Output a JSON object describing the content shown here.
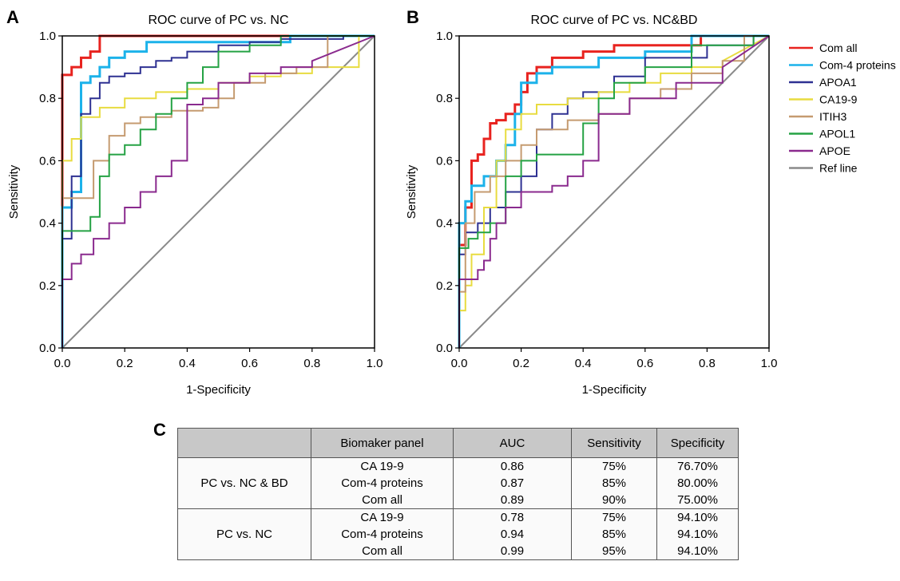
{
  "panel_labels": {
    "a": "A",
    "b": "B",
    "c": "C"
  },
  "ticks": {
    "x": [
      "0.0",
      "0.2",
      "0.4",
      "0.6",
      "0.8",
      "1.0"
    ],
    "y": [
      "0.0",
      "0.2",
      "0.4",
      "0.6",
      "0.8",
      "1.0"
    ]
  },
  "legend": {
    "items": [
      {
        "label": "Com all",
        "color": "#e8231f"
      },
      {
        "label": "Com-4 proteins",
        "color": "#1cb2ea"
      },
      {
        "label": "APOA1",
        "color": "#2e3192"
      },
      {
        "label": "CA19-9",
        "color": "#e8dc40"
      },
      {
        "label": "ITIH3",
        "color": "#c59b70"
      },
      {
        "label": "APOL1",
        "color": "#25a244"
      },
      {
        "label": "APOE",
        "color": "#8a2a8e"
      },
      {
        "label": "Ref line",
        "color": "#8a8a8a"
      }
    ]
  },
  "chart_data": [
    {
      "type": "line",
      "title": "ROC curve of PC vs. NC",
      "xlabel": "1-Specificity",
      "ylabel": "Sensitivity",
      "xlim": [
        0,
        1
      ],
      "ylim": [
        0,
        1
      ],
      "grid": false,
      "series": [
        {
          "name": "Com all",
          "color": "#e8231f",
          "x": [
            0,
            0,
            0.03,
            0.03,
            0.06,
            0.06,
            0.09,
            0.09,
            0.12,
            0.12,
            1
          ],
          "y": [
            0,
            0.875,
            0.875,
            0.9,
            0.9,
            0.93,
            0.93,
            0.95,
            0.95,
            1,
            1
          ]
        },
        {
          "name": "Com-4 proteins",
          "color": "#1cb2ea",
          "x": [
            0,
            0,
            0.03,
            0.03,
            0.06,
            0.06,
            0.09,
            0.09,
            0.12,
            0.12,
            0.15,
            0.15,
            0.2,
            0.2,
            0.27,
            0.27,
            0.73,
            0.73,
            1
          ],
          "y": [
            0,
            0.45,
            0.45,
            0.5,
            0.5,
            0.85,
            0.85,
            0.87,
            0.87,
            0.9,
            0.9,
            0.93,
            0.93,
            0.95,
            0.95,
            0.98,
            0.98,
            1,
            1
          ]
        },
        {
          "name": "APOA1",
          "color": "#2e3192",
          "x": [
            0,
            0,
            0.03,
            0.03,
            0.06,
            0.06,
            0.09,
            0.09,
            0.12,
            0.12,
            0.15,
            0.15,
            0.2,
            0.2,
            0.25,
            0.25,
            0.3,
            0.3,
            0.35,
            0.35,
            0.4,
            0.4,
            0.5,
            0.5,
            0.6,
            0.6,
            0.7,
            0.7,
            0.9,
            0.9,
            1
          ],
          "y": [
            0,
            0.35,
            0.35,
            0.55,
            0.55,
            0.75,
            0.75,
            0.8,
            0.8,
            0.85,
            0.85,
            0.87,
            0.87,
            0.88,
            0.88,
            0.9,
            0.9,
            0.92,
            0.92,
            0.93,
            0.93,
            0.95,
            0.95,
            0.97,
            0.97,
            0.98,
            0.98,
            0.99,
            0.99,
            1,
            1
          ]
        },
        {
          "name": "CA19-9",
          "color": "#e8dc40",
          "x": [
            0,
            0,
            0.03,
            0.03,
            0.06,
            0.06,
            0.12,
            0.12,
            0.2,
            0.2,
            0.3,
            0.3,
            0.4,
            0.4,
            0.5,
            0.5,
            0.6,
            0.6,
            0.7,
            0.7,
            0.8,
            0.8,
            0.95,
            0.95,
            1
          ],
          "y": [
            0,
            0.6,
            0.6,
            0.67,
            0.67,
            0.74,
            0.74,
            0.77,
            0.77,
            0.8,
            0.8,
            0.82,
            0.82,
            0.83,
            0.83,
            0.85,
            0.85,
            0.87,
            0.87,
            0.88,
            0.88,
            0.9,
            0.9,
            1,
            1
          ]
        },
        {
          "name": "ITIH3",
          "color": "#c59b70",
          "x": [
            0,
            0,
            0.05,
            0.05,
            0.1,
            0.1,
            0.15,
            0.15,
            0.2,
            0.2,
            0.25,
            0.25,
            0.35,
            0.35,
            0.45,
            0.45,
            0.5,
            0.5,
            0.55,
            0.55,
            0.65,
            0.65,
            0.75,
            0.75,
            0.85,
            0.85,
            1
          ],
          "y": [
            0,
            0.48,
            0.48,
            0.48,
            0.48,
            0.6,
            0.6,
            0.68,
            0.68,
            0.72,
            0.72,
            0.74,
            0.74,
            0.76,
            0.76,
            0.77,
            0.77,
            0.8,
            0.8,
            0.85,
            0.85,
            0.88,
            0.88,
            0.9,
            0.9,
            1,
            1
          ]
        },
        {
          "name": "APOL1",
          "color": "#25a244",
          "x": [
            0,
            0,
            0.09,
            0.09,
            0.12,
            0.12,
            0.15,
            0.15,
            0.2,
            0.2,
            0.25,
            0.25,
            0.3,
            0.3,
            0.35,
            0.35,
            0.4,
            0.4,
            0.45,
            0.45,
            0.5,
            0.5,
            0.6,
            0.6,
            0.7,
            0.7,
            1
          ],
          "y": [
            0,
            0.375,
            0.375,
            0.42,
            0.42,
            0.55,
            0.55,
            0.62,
            0.62,
            0.65,
            0.65,
            0.7,
            0.7,
            0.75,
            0.75,
            0.8,
            0.8,
            0.85,
            0.85,
            0.9,
            0.9,
            0.95,
            0.95,
            0.97,
            0.97,
            1,
            1
          ]
        },
        {
          "name": "APOE",
          "color": "#8a2a8e",
          "x": [
            0,
            0,
            0.03,
            0.03,
            0.06,
            0.06,
            0.1,
            0.1,
            0.15,
            0.15,
            0.2,
            0.2,
            0.25,
            0.25,
            0.3,
            0.3,
            0.35,
            0.35,
            0.4,
            0.4,
            0.45,
            0.45,
            0.5,
            0.5,
            0.6,
            0.6,
            0.7,
            0.7,
            0.8,
            0.8,
            1
          ],
          "y": [
            0,
            0.22,
            0.22,
            0.27,
            0.27,
            0.3,
            0.3,
            0.35,
            0.35,
            0.4,
            0.4,
            0.45,
            0.45,
            0.5,
            0.5,
            0.55,
            0.55,
            0.6,
            0.6,
            0.78,
            0.78,
            0.8,
            0.8,
            0.85,
            0.85,
            0.88,
            0.88,
            0.9,
            0.9,
            0.92,
            1
          ]
        },
        {
          "name": "Ref line",
          "color": "#8a8a8a",
          "x": [
            0,
            1
          ],
          "y": [
            0,
            1
          ]
        }
      ]
    },
    {
      "type": "line",
      "title": "ROC curve of PC vs. NC&BD",
      "xlabel": "1-Specificity",
      "ylabel": "Sensitivity",
      "xlim": [
        0,
        1
      ],
      "ylim": [
        0,
        1
      ],
      "grid": false,
      "series": [
        {
          "name": "Com all",
          "color": "#e8231f",
          "x": [
            0,
            0,
            0.02,
            0.02,
            0.04,
            0.04,
            0.06,
            0.06,
            0.08,
            0.08,
            0.1,
            0.1,
            0.12,
            0.12,
            0.15,
            0.15,
            0.18,
            0.18,
            0.2,
            0.2,
            0.22,
            0.22,
            0.25,
            0.25,
            0.3,
            0.3,
            0.4,
            0.4,
            0.5,
            0.5,
            0.78,
            0.78,
            1
          ],
          "y": [
            0,
            0.33,
            0.33,
            0.45,
            0.45,
            0.6,
            0.6,
            0.62,
            0.62,
            0.67,
            0.67,
            0.72,
            0.72,
            0.73,
            0.73,
            0.75,
            0.75,
            0.78,
            0.78,
            0.82,
            0.82,
            0.88,
            0.88,
            0.9,
            0.9,
            0.93,
            0.93,
            0.95,
            0.95,
            0.97,
            0.97,
            1,
            1
          ]
        },
        {
          "name": "Com-4 proteins",
          "color": "#1cb2ea",
          "x": [
            0,
            0,
            0.02,
            0.02,
            0.04,
            0.04,
            0.08,
            0.08,
            0.12,
            0.12,
            0.15,
            0.15,
            0.18,
            0.18,
            0.2,
            0.2,
            0.25,
            0.25,
            0.3,
            0.3,
            0.45,
            0.45,
            0.6,
            0.6,
            0.75,
            0.75,
            1
          ],
          "y": [
            0,
            0.4,
            0.4,
            0.47,
            0.47,
            0.52,
            0.52,
            0.55,
            0.55,
            0.6,
            0.6,
            0.65,
            0.65,
            0.75,
            0.75,
            0.85,
            0.85,
            0.88,
            0.88,
            0.9,
            0.9,
            0.93,
            0.93,
            0.95,
            0.95,
            1,
            1
          ]
        },
        {
          "name": "APOA1",
          "color": "#2e3192",
          "x": [
            0,
            0,
            0.02,
            0.02,
            0.06,
            0.06,
            0.1,
            0.1,
            0.15,
            0.15,
            0.2,
            0.2,
            0.25,
            0.25,
            0.3,
            0.3,
            0.35,
            0.35,
            0.4,
            0.4,
            0.5,
            0.5,
            0.6,
            0.6,
            0.8,
            0.8,
            0.95,
            0.95,
            1
          ],
          "y": [
            0,
            0.3,
            0.3,
            0.37,
            0.37,
            0.4,
            0.4,
            0.45,
            0.45,
            0.5,
            0.5,
            0.55,
            0.55,
            0.7,
            0.7,
            0.75,
            0.75,
            0.8,
            0.8,
            0.82,
            0.82,
            0.87,
            0.87,
            0.93,
            0.93,
            0.97,
            0.97,
            1,
            1
          ]
        },
        {
          "name": "CA19-9",
          "color": "#e8dc40",
          "x": [
            0,
            0,
            0.02,
            0.02,
            0.04,
            0.04,
            0.08,
            0.08,
            0.12,
            0.12,
            0.15,
            0.15,
            0.2,
            0.2,
            0.25,
            0.25,
            0.35,
            0.35,
            0.45,
            0.45,
            0.55,
            0.55,
            0.65,
            0.65,
            0.75,
            0.75,
            0.85,
            0.85,
            1
          ],
          "y": [
            0,
            0.12,
            0.12,
            0.2,
            0.2,
            0.3,
            0.3,
            0.45,
            0.45,
            0.6,
            0.6,
            0.7,
            0.7,
            0.75,
            0.75,
            0.78,
            0.78,
            0.8,
            0.8,
            0.82,
            0.82,
            0.85,
            0.85,
            0.88,
            0.88,
            0.9,
            0.9,
            0.92,
            1
          ]
        },
        {
          "name": "ITIH3",
          "color": "#c59b70",
          "x": [
            0,
            0,
            0.02,
            0.02,
            0.05,
            0.05,
            0.1,
            0.1,
            0.15,
            0.15,
            0.2,
            0.2,
            0.25,
            0.25,
            0.35,
            0.35,
            0.45,
            0.45,
            0.55,
            0.55,
            0.65,
            0.65,
            0.75,
            0.75,
            0.85,
            0.85,
            0.92,
            0.92,
            1
          ],
          "y": [
            0,
            0.18,
            0.18,
            0.4,
            0.4,
            0.5,
            0.5,
            0.55,
            0.55,
            0.6,
            0.6,
            0.65,
            0.65,
            0.7,
            0.7,
            0.73,
            0.73,
            0.75,
            0.75,
            0.8,
            0.8,
            0.83,
            0.83,
            0.88,
            0.88,
            0.92,
            0.92,
            1,
            1
          ]
        },
        {
          "name": "APOL1",
          "color": "#25a244",
          "x": [
            0,
            0,
            0.03,
            0.03,
            0.06,
            0.06,
            0.1,
            0.1,
            0.15,
            0.15,
            0.2,
            0.2,
            0.25,
            0.25,
            0.3,
            0.3,
            0.4,
            0.4,
            0.45,
            0.45,
            0.5,
            0.5,
            0.6,
            0.6,
            0.75,
            0.75,
            0.95,
            0.95,
            1
          ],
          "y": [
            0,
            0.32,
            0.32,
            0.35,
            0.35,
            0.37,
            0.37,
            0.4,
            0.4,
            0.55,
            0.55,
            0.6,
            0.6,
            0.62,
            0.62,
            0.62,
            0.62,
            0.72,
            0.72,
            0.8,
            0.8,
            0.85,
            0.85,
            0.9,
            0.9,
            0.97,
            0.97,
            1,
            1
          ]
        },
        {
          "name": "APOE",
          "color": "#8a2a8e",
          "x": [
            0,
            0,
            0.03,
            0.03,
            0.06,
            0.06,
            0.08,
            0.08,
            0.1,
            0.1,
            0.12,
            0.12,
            0.15,
            0.15,
            0.2,
            0.2,
            0.3,
            0.3,
            0.35,
            0.35,
            0.4,
            0.4,
            0.45,
            0.45,
            0.55,
            0.55,
            0.7,
            0.7,
            0.85,
            0.85,
            1
          ],
          "y": [
            0,
            0.22,
            0.22,
            0.22,
            0.22,
            0.25,
            0.25,
            0.28,
            0.28,
            0.35,
            0.35,
            0.4,
            0.4,
            0.45,
            0.45,
            0.5,
            0.5,
            0.52,
            0.52,
            0.55,
            0.55,
            0.6,
            0.6,
            0.75,
            0.75,
            0.8,
            0.8,
            0.85,
            0.85,
            0.9,
            1
          ]
        },
        {
          "name": "Ref line",
          "color": "#8a8a8a",
          "x": [
            0,
            1
          ],
          "y": [
            0,
            1
          ]
        }
      ]
    }
  ],
  "table": {
    "headers": [
      "",
      "Biomaker panel",
      "AUC",
      "Sensitivity",
      "Specificity"
    ],
    "groups": [
      {
        "label": "PC vs. NC & BD",
        "rows": [
          [
            "CA 19-9",
            "0.86",
            "75%",
            "76.70%"
          ],
          [
            "Com-4 proteins",
            "0.87",
            "85%",
            "80.00%"
          ],
          [
            "Com all",
            "0.89",
            "90%",
            "75.00%"
          ]
        ]
      },
      {
        "label": "PC vs. NC",
        "rows": [
          [
            "CA 19-9",
            "0.78",
            "75%",
            "94.10%"
          ],
          [
            "Com-4 proteins",
            "0.94",
            "85%",
            "94.10%"
          ],
          [
            "Com all",
            "0.99",
            "95%",
            "94.10%"
          ]
        ]
      }
    ]
  }
}
